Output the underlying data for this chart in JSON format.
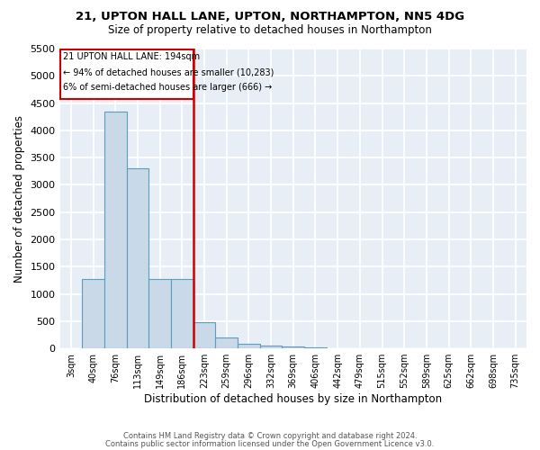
{
  "title": "21, UPTON HALL LANE, UPTON, NORTHAMPTON, NN5 4DG",
  "subtitle": "Size of property relative to detached houses in Northampton",
  "xlabel": "Distribution of detached houses by size in Northampton",
  "ylabel": "Number of detached properties",
  "bar_color": "#c9d9e8",
  "bar_edge_color": "#5a9dbf",
  "background_color": "#e8eef5",
  "grid_color": "white",
  "annotation_line1": "21 UPTON HALL LANE: 194sqm",
  "annotation_line2": "← 94% of detached houses are smaller (10,283)",
  "annotation_line3": "6% of semi-detached houses are larger (666) →",
  "annotation_box_color": "#cc0000",
  "vline_color": "#cc0000",
  "bins": [
    "3sqm",
    "40sqm",
    "76sqm",
    "113sqm",
    "149sqm",
    "186sqm",
    "223sqm",
    "259sqm",
    "296sqm",
    "332sqm",
    "369sqm",
    "406sqm",
    "442sqm",
    "479sqm",
    "515sqm",
    "552sqm",
    "589sqm",
    "625sqm",
    "662sqm",
    "698sqm",
    "735sqm"
  ],
  "values": [
    0,
    1280,
    4350,
    3300,
    1280,
    1280,
    480,
    200,
    80,
    50,
    30,
    20,
    0,
    0,
    0,
    0,
    0,
    0,
    0,
    0,
    0
  ],
  "ylim": [
    0,
    5500
  ],
  "yticks": [
    0,
    500,
    1000,
    1500,
    2000,
    2500,
    3000,
    3500,
    4000,
    4500,
    5000,
    5500
  ],
  "vline_bin_index": 5,
  "footnote1": "Contains HM Land Registry data © Crown copyright and database right 2024.",
  "footnote2": "Contains public sector information licensed under the Open Government Licence v3.0."
}
